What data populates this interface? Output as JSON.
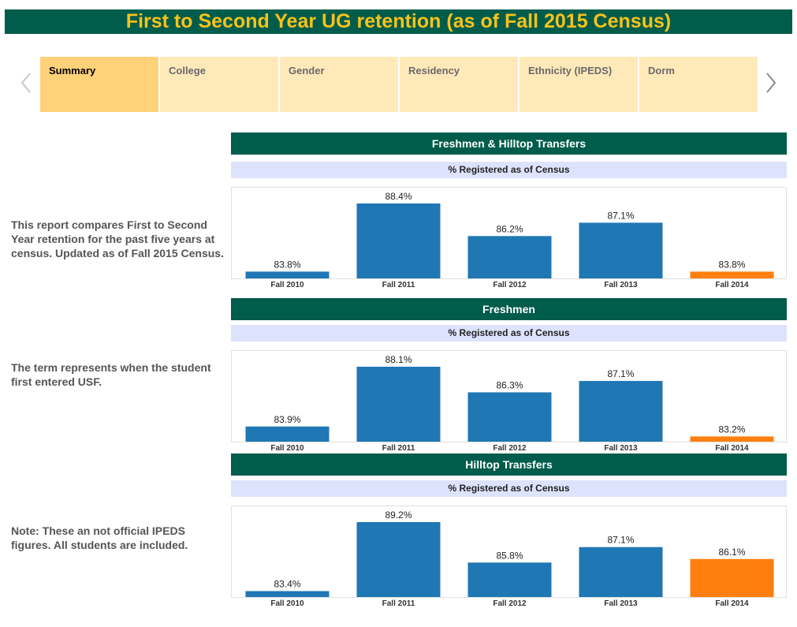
{
  "title": "First to Second Year UG retention (as of Fall 2015 Census)",
  "tabs": [
    {
      "label": "Summary",
      "active": true
    },
    {
      "label": "College",
      "active": false
    },
    {
      "label": "Gender",
      "active": false
    },
    {
      "label": "Residency",
      "active": false
    },
    {
      "label": "Ethnicity (IPEDS)",
      "active": false
    },
    {
      "label": "Dorm",
      "active": false
    }
  ],
  "descriptions": [
    "This report compares First to Second Year retention for the past five years at census. Updated as of Fall 2015 Census.",
    "The term represents when the student first entered USF.",
    "Note: These an not official IPEDS figures. All students are included."
  ],
  "colors": {
    "header_bg": "#005C4B",
    "title_text": "#F8C21A",
    "subheader_bg": "#DDE3FD",
    "bar_blue": "#1F77B4",
    "bar_orange": "#FF7F0E",
    "tab_bg": "#FFE9B9",
    "tab_active_bg": "#FFD27A"
  },
  "chart_data": [
    {
      "type": "bar",
      "title": "Freshmen & Hilltop Transfers",
      "subtitle": "% Registered as of Census",
      "categories": [
        "Fall 2010",
        "Fall 2011",
        "Fall 2012",
        "Fall 2013",
        "Fall 2014"
      ],
      "values": [
        83.8,
        88.4,
        86.2,
        87.1,
        83.8
      ],
      "labels": [
        "83.8%",
        "88.4%",
        "86.2%",
        "87.1%",
        "83.8%"
      ],
      "highlight_index": 4,
      "ylim": [
        83.5,
        88.4
      ]
    },
    {
      "type": "bar",
      "title": "Freshmen",
      "subtitle": "% Registered as of Census",
      "categories": [
        "Fall 2010",
        "Fall 2011",
        "Fall 2012",
        "Fall 2013",
        "Fall 2014"
      ],
      "values": [
        83.9,
        88.1,
        86.3,
        87.1,
        83.2
      ],
      "labels": [
        "83.9%",
        "88.1%",
        "86.3%",
        "87.1%",
        "83.2%"
      ],
      "highlight_index": 4,
      "ylim": [
        83.0,
        88.1
      ]
    },
    {
      "type": "bar",
      "title": "Hilltop Transfers",
      "subtitle": "% Registered as of Census",
      "categories": [
        "Fall 2010",
        "Fall 2011",
        "Fall 2012",
        "Fall 2013",
        "Fall 2014"
      ],
      "values": [
        83.4,
        89.2,
        85.8,
        87.1,
        86.1
      ],
      "labels": [
        "83.4%",
        "89.2%",
        "85.8%",
        "87.1%",
        "86.1%"
      ],
      "highlight_index": 4,
      "ylim": [
        83.1,
        89.2
      ]
    }
  ]
}
